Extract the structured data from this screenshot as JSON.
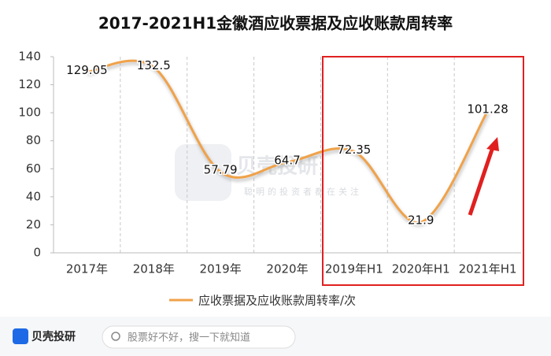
{
  "chart_data": {
    "type": "line",
    "title": "2017-2021H1金徽酒应收票据及应收账款周转率",
    "categories": [
      "2017年",
      "2018年",
      "2019年",
      "2020年",
      "2019年H1",
      "2020年H1",
      "2021年H1"
    ],
    "series": [
      {
        "name": "应收票据及应收账款周转率/次",
        "color": "#f0a24a",
        "values": [
          129.05,
          132.5,
          57.79,
          64.7,
          72.35,
          21.9,
          101.28
        ]
      }
    ],
    "ylim": [
      0,
      140
    ],
    "yticks": [
      0,
      20,
      40,
      60,
      80,
      100,
      120,
      140
    ],
    "grid": true,
    "legend": "bottom"
  },
  "watermark": {
    "title": "贝壳投研",
    "subtitle": "聪明的投资者都在关注"
  },
  "footer": {
    "brand": "贝壳投研",
    "search_placeholder": "股票好不好，搜一下就知道"
  }
}
